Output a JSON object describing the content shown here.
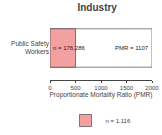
{
  "chart_data": {
    "type": "bar",
    "orientation": "horizontal",
    "title": "Industry",
    "xlabel": "Proportionate Mortality Ratio (PMR)",
    "categories": [
      "Public Safety\nWorkers"
    ],
    "series": [
      {
        "color": "#ffffff",
        "values": [
          2000
        ]
      },
      {
        "name": "n = 1,116",
        "color": "#f4a0a0",
        "values": [
          500
        ]
      }
    ],
    "stacked": false,
    "annotations": [
      "n = 176,286",
      "PMR = 1107"
    ],
    "xlim": [
      0,
      2000
    ],
    "xticks": [
      0,
      500,
      1000,
      1500,
      2000
    ],
    "grid": false,
    "legend": "bottom"
  }
}
